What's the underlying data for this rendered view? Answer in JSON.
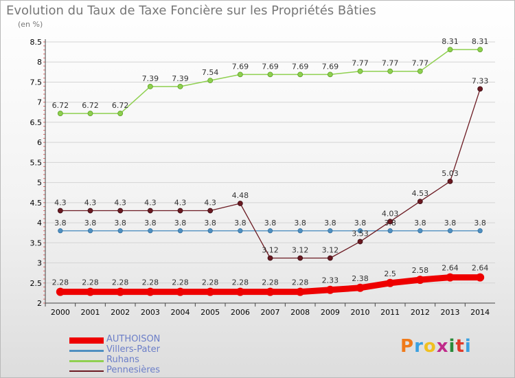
{
  "title": "Evolution du Taux de Taxe Foncière sur les Propriétés Bâties",
  "unit_label": "(en %)",
  "logo": {
    "text": "Proxiti",
    "letter_colors": [
      "#f07a1a",
      "#3aa0e0",
      "#f0c020",
      "#c02a8a",
      "#2a8a3a",
      "#e03a2a",
      "#3aa0e0"
    ]
  },
  "chart_data": {
    "type": "line",
    "title": "Evolution du Taux de Taxe Foncière sur les Propriétés Bâties",
    "ylabel": "(en %)",
    "xlabel": "",
    "ylim": [
      2,
      8.5
    ],
    "yticks": [
      "2",
      "2.5",
      "3",
      "3.5",
      "4",
      "4.5",
      "5",
      "5.5",
      "6",
      "6.5",
      "7",
      "7.5",
      "8",
      "8.5"
    ],
    "categories": [
      "2000",
      "2001",
      "2002",
      "2003",
      "2004",
      "2005",
      "2006",
      "2007",
      "2008",
      "2009",
      "2010",
      "2011",
      "2012",
      "2013",
      "2014"
    ],
    "grid": "horizontal",
    "legend_position": "bottom-left",
    "series": [
      {
        "name": "AUTHOISON",
        "color": "#ee0000",
        "values": [
          2.28,
          2.28,
          2.28,
          2.28,
          2.28,
          2.28,
          2.28,
          2.28,
          2.28,
          2.33,
          2.38,
          2.5,
          2.58,
          2.64,
          2.64
        ],
        "labels": [
          "2.28",
          "2.28",
          "2.28",
          "2.28",
          "2.28",
          "2.28",
          "2.28",
          "2.28",
          "2.28",
          "2.33",
          "2.38",
          "2.5",
          "2.58",
          "2.64",
          "2.64"
        ]
      },
      {
        "name": "Villers-Pater",
        "color": "#4f8fc0",
        "values": [
          3.8,
          3.8,
          3.8,
          3.8,
          3.8,
          3.8,
          3.8,
          3.8,
          3.8,
          3.8,
          3.8,
          3.8,
          3.8,
          3.8,
          3.8
        ],
        "labels": [
          "3.8",
          "3.8",
          "3.8",
          "3.8",
          "3.8",
          "3.8",
          "3.8",
          "3.8",
          "3.8",
          "3.8",
          "3.8",
          "3.8",
          "3.8",
          "3.8",
          "3.8"
        ]
      },
      {
        "name": "Ruhans",
        "color": "#8fd050",
        "values": [
          6.72,
          6.72,
          6.72,
          7.39,
          7.39,
          7.54,
          7.69,
          7.69,
          7.69,
          7.69,
          7.77,
          7.77,
          7.77,
          8.31,
          8.31
        ],
        "labels": [
          "6.72",
          "6.72",
          "6.72",
          "7.39",
          "7.39",
          "7.54",
          "7.69",
          "7.69",
          "7.69",
          "7.69",
          "7.77",
          "7.77",
          "7.77",
          "8.31",
          "8.31"
        ]
      },
      {
        "name": "Pennesières",
        "color": "#6b1a22",
        "values": [
          4.3,
          4.3,
          4.3,
          4.3,
          4.3,
          4.3,
          4.48,
          3.12,
          3.12,
          3.12,
          3.53,
          4.03,
          4.53,
          5.03,
          7.33
        ],
        "labels": [
          "4.3",
          "4.3",
          "4.3",
          "4.3",
          "4.3",
          "4.3",
          "4.48",
          "3.12",
          "3.12",
          "3.12",
          "3.53",
          "4.03",
          "4.53",
          "5.03",
          "7.33"
        ]
      }
    ]
  }
}
